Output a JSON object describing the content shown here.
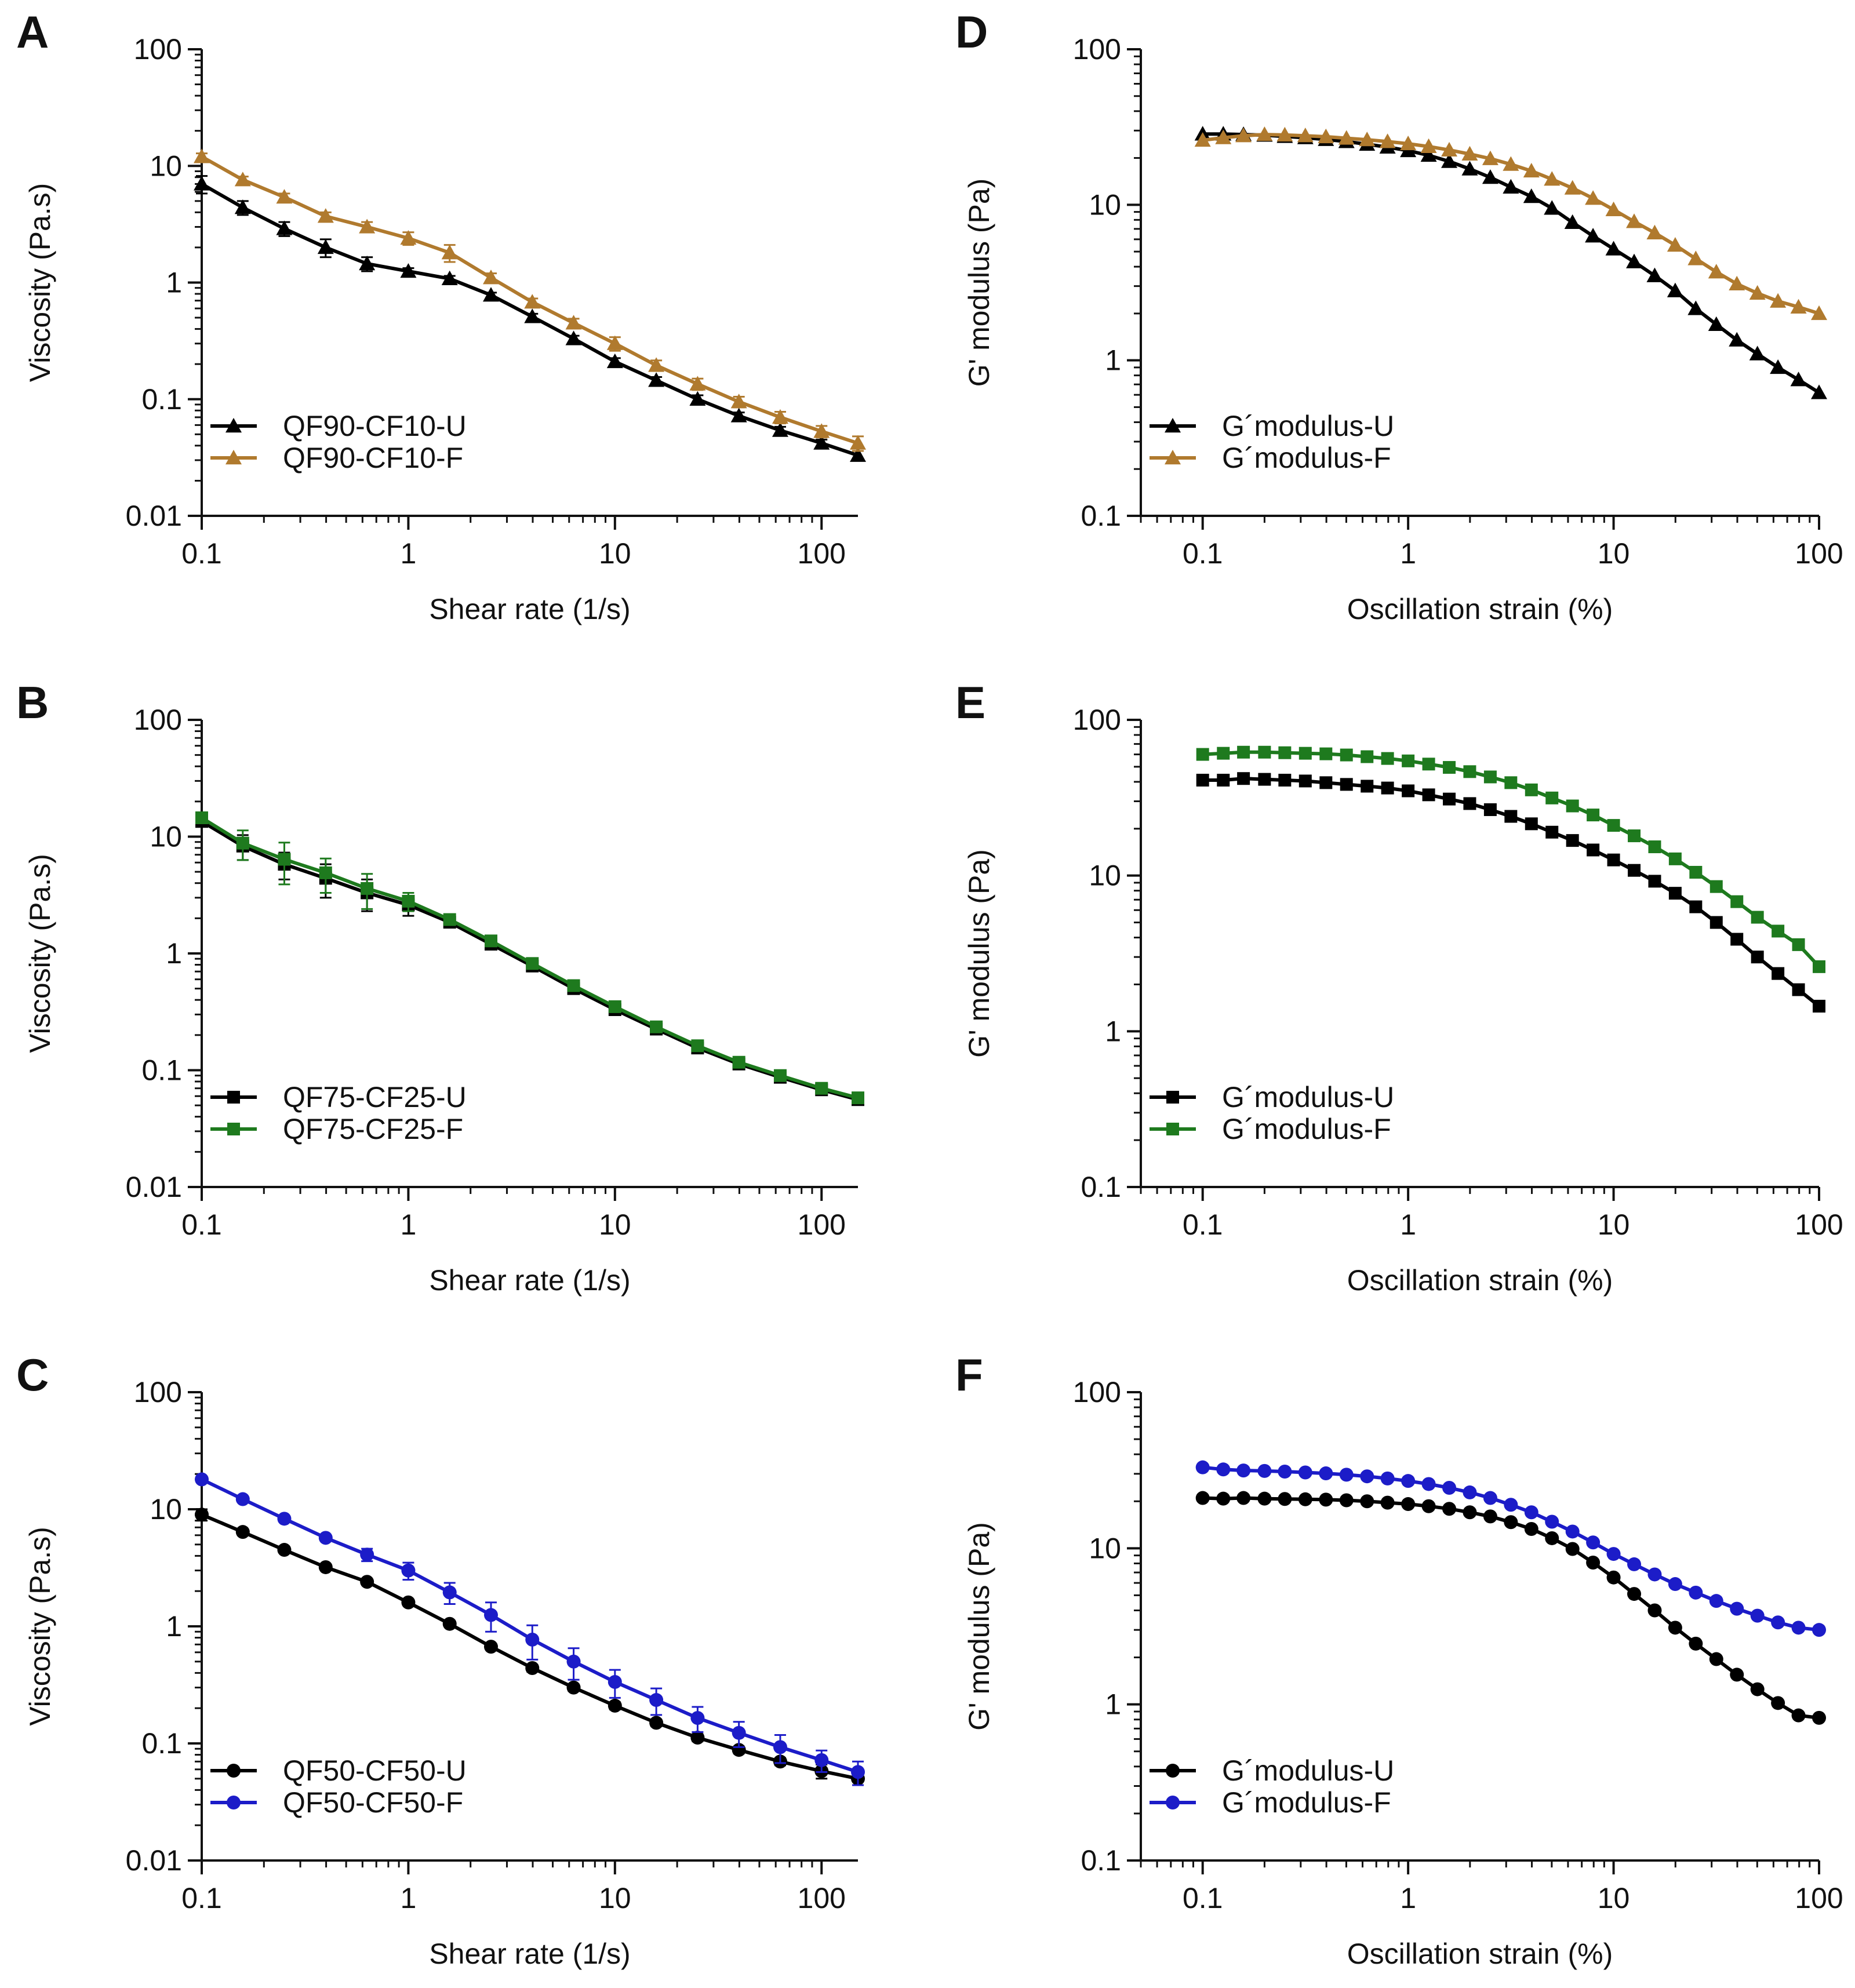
{
  "chart_data": [
    {
      "panel": "A",
      "type": "line",
      "xscale": "log",
      "yscale": "log",
      "xlim": [
        0.1,
        150
      ],
      "ylim": [
        0.01,
        100
      ],
      "xticks": [
        "0.1",
        "1",
        "10",
        "100"
      ],
      "yticks": [
        "0.01",
        "0.1",
        "1",
        "10",
        "100"
      ],
      "xlabel": "Shear rate (1/s)",
      "ylabel": "Viscosity (Pa.s)",
      "legend_position": "bottom-left",
      "series": [
        {
          "name": "QF90-CF10-U",
          "color": "#000000",
          "marker": "triangle",
          "x": [
            0.1,
            0.158,
            0.251,
            0.398,
            0.631,
            1,
            1.585,
            2.512,
            3.981,
            6.31,
            10,
            15.85,
            25.12,
            39.81,
            63.1,
            100,
            150
          ],
          "y": [
            7.0,
            4.4,
            2.9,
            2.0,
            1.45,
            1.25,
            1.08,
            0.78,
            0.51,
            0.33,
            0.21,
            0.145,
            0.1,
            0.072,
            0.054,
            0.042,
            0.033
          ],
          "err": [
            1.2,
            0.6,
            0.4,
            0.35,
            0.2,
            0.08,
            0.06,
            0.04,
            0.03,
            0.02,
            0.015,
            0.01,
            0.008,
            0.005,
            0.004,
            0.003,
            0.003
          ]
        },
        {
          "name": "QF90-CF10-F",
          "color": "#B07A2E",
          "marker": "triangle",
          "x": [
            0.1,
            0.158,
            0.251,
            0.398,
            0.631,
            1,
            1.585,
            2.512,
            3.981,
            6.31,
            10,
            15.85,
            25.12,
            39.81,
            63.1,
            100,
            150
          ],
          "y": [
            12,
            7.6,
            5.4,
            3.7,
            3.0,
            2.4,
            1.8,
            1.1,
            0.68,
            0.45,
            0.3,
            0.195,
            0.135,
            0.095,
            0.07,
            0.053,
            0.042
          ],
          "err": [
            0.8,
            0.5,
            0.4,
            0.3,
            0.3,
            0.3,
            0.3,
            0.1,
            0.05,
            0.04,
            0.04,
            0.02,
            0.015,
            0.01,
            0.008,
            0.006,
            0.006
          ]
        }
      ]
    },
    {
      "panel": "B",
      "type": "line",
      "xscale": "log",
      "yscale": "log",
      "xlim": [
        0.1,
        150
      ],
      "ylim": [
        0.01,
        100
      ],
      "xticks": [
        "0.1",
        "1",
        "10",
        "100"
      ],
      "yticks": [
        "0.01",
        "0.1",
        "1",
        "10",
        "100"
      ],
      "xlabel": "Shear rate (1/s)",
      "ylabel": "Viscosity (Pa.s)",
      "legend_position": "bottom-left",
      "series": [
        {
          "name": "QF75-CF25-U",
          "color": "#000000",
          "marker": "square",
          "x": [
            0.1,
            0.158,
            0.251,
            0.398,
            0.631,
            1,
            1.585,
            2.512,
            3.981,
            6.31,
            10,
            15.85,
            25.12,
            39.81,
            63.1,
            100,
            150
          ],
          "y": [
            13.5,
            8.3,
            5.8,
            4.4,
            3.3,
            2.6,
            1.85,
            1.2,
            0.78,
            0.5,
            0.33,
            0.225,
            0.155,
            0.113,
            0.087,
            0.068,
            0.056
          ],
          "err": [
            1.0,
            2.0,
            1.5,
            1.4,
            1.0,
            0.5,
            0.15,
            0.08,
            0.05,
            0.03,
            0.02,
            0.015,
            0.01,
            0.008,
            0.006,
            0.005,
            0.004
          ]
        },
        {
          "name": "QF75-CF25-F",
          "color": "#1E7A1E",
          "marker": "square",
          "x": [
            0.1,
            0.158,
            0.251,
            0.398,
            0.631,
            1,
            1.585,
            2.512,
            3.981,
            6.31,
            10,
            15.85,
            25.12,
            39.81,
            63.1,
            100,
            150
          ],
          "y": [
            14.5,
            8.8,
            6.4,
            4.9,
            3.6,
            2.8,
            1.95,
            1.28,
            0.82,
            0.53,
            0.35,
            0.235,
            0.162,
            0.117,
            0.09,
            0.07,
            0.058
          ],
          "err": [
            1.0,
            2.5,
            2.5,
            1.6,
            1.2,
            0.5,
            0.15,
            0.08,
            0.05,
            0.03,
            0.02,
            0.015,
            0.01,
            0.008,
            0.006,
            0.005,
            0.004
          ]
        }
      ]
    },
    {
      "panel": "C",
      "type": "line",
      "xscale": "log",
      "yscale": "log",
      "xlim": [
        0.1,
        150
      ],
      "ylim": [
        0.01,
        100
      ],
      "xticks": [
        "0.1",
        "1",
        "10",
        "100"
      ],
      "yticks": [
        "0.01",
        "0.1",
        "1",
        "10",
        "100"
      ],
      "xlabel": "Shear rate (1/s)",
      "ylabel": "Viscosity (Pa.s)",
      "legend_position": "bottom-left",
      "series": [
        {
          "name": "QF50-CF50-U",
          "color": "#000000",
          "marker": "circle",
          "x": [
            0.1,
            0.158,
            0.251,
            0.398,
            0.631,
            1,
            1.585,
            2.512,
            3.981,
            6.31,
            10,
            15.85,
            25.12,
            39.81,
            63.1,
            100,
            150
          ],
          "y": [
            9.0,
            6.4,
            4.5,
            3.2,
            2.4,
            1.6,
            1.05,
            0.67,
            0.44,
            0.3,
            0.21,
            0.15,
            0.112,
            0.088,
            0.07,
            0.058,
            0.05
          ],
          "err": [
            1.0,
            0.3,
            0.2,
            0.15,
            0.1,
            0.08,
            0.05,
            0.04,
            0.03,
            0.02,
            0.015,
            0.01,
            0.008,
            0.006,
            0.005,
            0.008,
            0.006
          ]
        },
        {
          "name": "QF50-CF50-F",
          "color": "#1C1CC8",
          "marker": "circle",
          "x": [
            0.1,
            0.158,
            0.251,
            0.398,
            0.631,
            1,
            1.585,
            2.512,
            3.981,
            6.31,
            10,
            15.85,
            25.12,
            39.81,
            63.1,
            100,
            150
          ],
          "y": [
            18,
            12.2,
            8.3,
            5.7,
            4.1,
            3.0,
            1.95,
            1.25,
            0.77,
            0.5,
            0.335,
            0.235,
            0.165,
            0.123,
            0.093,
            0.072,
            0.057
          ],
          "err": [
            0.8,
            0.5,
            0.4,
            0.3,
            0.5,
            0.5,
            0.4,
            0.35,
            0.25,
            0.15,
            0.09,
            0.06,
            0.04,
            0.03,
            0.025,
            0.015,
            0.013
          ]
        }
      ]
    },
    {
      "panel": "D",
      "type": "line",
      "xscale": "log",
      "yscale": "log",
      "xlim": [
        0.05,
        100
      ],
      "ylim": [
        0.1,
        100
      ],
      "xticks": [
        "0.1",
        "1",
        "10",
        "100"
      ],
      "yticks": [
        "0.1",
        "1",
        "10",
        "100"
      ],
      "xlabel": "Oscillation strain (%)",
      "ylabel": "G' modulus (Pa)",
      "legend_position": "bottom-left",
      "series": [
        {
          "name": "G´modulus-U",
          "color": "#000000",
          "marker": "triangle",
          "x": [
            0.1,
            0.126,
            0.158,
            0.2,
            0.251,
            0.316,
            0.398,
            0.501,
            0.631,
            0.794,
            1,
            1.259,
            1.585,
            1.995,
            2.512,
            3.162,
            3.981,
            5.012,
            6.31,
            7.943,
            10,
            12.59,
            15.85,
            19.95,
            25.12,
            31.62,
            39.81,
            50.12,
            63.1,
            79.43,
            100
          ],
          "y": [
            28.5,
            28.5,
            28.3,
            28,
            27.5,
            27,
            26.3,
            25.5,
            24.5,
            23.5,
            22.3,
            20.8,
            19,
            17,
            15,
            13,
            11.3,
            9.5,
            7.7,
            6.3,
            5.2,
            4.3,
            3.5,
            2.8,
            2.15,
            1.7,
            1.35,
            1.1,
            0.9,
            0.75,
            0.62
          ]
        },
        {
          "name": "G´modulus-F",
          "color": "#B07A2E",
          "marker": "triangle",
          "x": [
            0.1,
            0.126,
            0.158,
            0.2,
            0.251,
            0.316,
            0.398,
            0.501,
            0.631,
            0.794,
            1,
            1.259,
            1.585,
            1.995,
            2.512,
            3.162,
            3.981,
            5.012,
            6.31,
            7.943,
            10,
            12.59,
            15.85,
            19.95,
            25.12,
            31.62,
            39.81,
            50.12,
            63.1,
            79.43,
            100
          ],
          "y": [
            26,
            27,
            27.8,
            28.3,
            28.1,
            27.8,
            27.4,
            26.8,
            26.2,
            25.5,
            24.7,
            23.7,
            22.5,
            21.2,
            19.8,
            18.2,
            16.5,
            14.6,
            12.8,
            11,
            9.3,
            7.8,
            6.6,
            5.5,
            4.5,
            3.7,
            3.1,
            2.7,
            2.4,
            2.2,
            2.0
          ]
        }
      ]
    },
    {
      "panel": "E",
      "type": "line",
      "xscale": "log",
      "yscale": "log",
      "xlim": [
        0.05,
        100
      ],
      "ylim": [
        0.1,
        100
      ],
      "xticks": [
        "0.1",
        "1",
        "10",
        "100"
      ],
      "yticks": [
        "0.1",
        "1",
        "10",
        "100"
      ],
      "xlabel": "Oscillation strain (%)",
      "ylabel": "G' modulus (Pa)",
      "legend_position": "bottom-left",
      "series": [
        {
          "name": "G´modulus-U",
          "color": "#000000",
          "marker": "square",
          "x": [
            0.1,
            0.126,
            0.158,
            0.2,
            0.251,
            0.316,
            0.398,
            0.501,
            0.631,
            0.794,
            1,
            1.259,
            1.585,
            1.995,
            2.512,
            3.162,
            3.981,
            5.012,
            6.31,
            7.943,
            10,
            12.59,
            15.85,
            19.95,
            25.12,
            31.62,
            39.81,
            50.12,
            63.1,
            79.43,
            100
          ],
          "y": [
            41,
            41,
            42,
            41.5,
            41,
            40.5,
            39.5,
            38.5,
            37.5,
            36.5,
            35,
            33,
            31,
            29,
            26.5,
            24,
            21.5,
            19,
            16.8,
            14.6,
            12.6,
            10.8,
            9.2,
            7.7,
            6.3,
            5.0,
            3.9,
            3.0,
            2.35,
            1.85,
            1.45
          ]
        },
        {
          "name": "G´modulus-F",
          "color": "#1E7A1E",
          "marker": "square",
          "x": [
            0.1,
            0.126,
            0.158,
            0.2,
            0.251,
            0.316,
            0.398,
            0.501,
            0.631,
            0.794,
            1,
            1.259,
            1.585,
            1.995,
            2.512,
            3.162,
            3.981,
            5.012,
            6.31,
            7.943,
            10,
            12.59,
            15.85,
            19.95,
            25.12,
            31.62,
            39.81,
            50.12,
            63.1,
            79.43,
            100
          ],
          "y": [
            60,
            61,
            62,
            62,
            61.5,
            61,
            60.5,
            59.5,
            58,
            56.5,
            54.5,
            52,
            49.5,
            46.5,
            43,
            39.5,
            35.5,
            31.5,
            28,
            24.5,
            21,
            18,
            15.3,
            12.8,
            10.5,
            8.5,
            6.8,
            5.4,
            4.4,
            3.6,
            2.6
          ]
        }
      ]
    },
    {
      "panel": "F",
      "type": "line",
      "xscale": "log",
      "yscale": "log",
      "xlim": [
        0.05,
        100
      ],
      "ylim": [
        0.1,
        100
      ],
      "xticks": [
        "0.1",
        "1",
        "10",
        "100"
      ],
      "yticks": [
        "0.1",
        "1",
        "10",
        "100"
      ],
      "xlabel": "Oscillation strain (%)",
      "ylabel": "G' modulus (Pa)",
      "legend_position": "bottom-left",
      "series": [
        {
          "name": "G´modulus-U",
          "color": "#000000",
          "marker": "circle",
          "x": [
            0.1,
            0.126,
            0.158,
            0.2,
            0.251,
            0.316,
            0.398,
            0.501,
            0.631,
            0.794,
            1,
            1.259,
            1.585,
            1.995,
            2.512,
            3.162,
            3.981,
            5.012,
            6.31,
            7.943,
            10,
            12.59,
            15.85,
            19.95,
            25.12,
            31.62,
            39.81,
            50.12,
            63.1,
            79.43,
            100
          ],
          "y": [
            21,
            20.8,
            21,
            20.8,
            20.7,
            20.6,
            20.5,
            20.3,
            20,
            19.6,
            19.2,
            18.6,
            17.9,
            17,
            16,
            14.7,
            13.3,
            11.6,
            9.9,
            8.1,
            6.5,
            5.1,
            4.0,
            3.1,
            2.45,
            1.95,
            1.55,
            1.25,
            1.02,
            0.85,
            0.82
          ]
        },
        {
          "name": "G´modulus-F",
          "color": "#1C1CC8",
          "marker": "circle",
          "x": [
            0.1,
            0.126,
            0.158,
            0.2,
            0.251,
            0.316,
            0.398,
            0.501,
            0.631,
            0.794,
            1,
            1.259,
            1.585,
            1.995,
            2.512,
            3.162,
            3.981,
            5.012,
            6.31,
            7.943,
            10,
            12.59,
            15.85,
            19.95,
            25.12,
            31.62,
            39.81,
            50.12,
            63.1,
            79.43,
            100
          ],
          "y": [
            33,
            32,
            31.5,
            31.3,
            31,
            30.6,
            30.2,
            29.6,
            28.9,
            28,
            27,
            25.8,
            24.4,
            22.8,
            21,
            19,
            17,
            14.8,
            12.8,
            10.9,
            9.2,
            7.9,
            6.8,
            5.9,
            5.2,
            4.6,
            4.1,
            3.7,
            3.35,
            3.1,
            3.0
          ]
        }
      ]
    }
  ]
}
